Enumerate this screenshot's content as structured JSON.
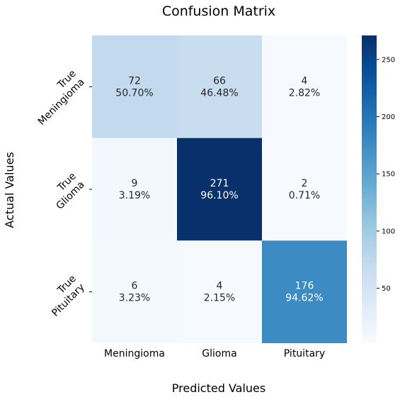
{
  "chart_data": {
    "type": "heatmap",
    "title": "Confusion Matrix",
    "xlabel": "Predicted Values",
    "ylabel": "Actual Values",
    "x_categories": [
      "Meningioma",
      "Glioma",
      "Pituitary"
    ],
    "y_categories": [
      [
        "True",
        "Meningioma"
      ],
      [
        "True",
        "Glioma"
      ],
      [
        "True",
        "Pituitary"
      ]
    ],
    "values": [
      [
        72,
        66,
        4
      ],
      [
        9,
        271,
        2
      ],
      [
        6,
        4,
        176
      ]
    ],
    "cell_labels": [
      [
        [
          "72",
          "50.70%"
        ],
        [
          "66",
          "46.48%"
        ],
        [
          "4",
          "2.82%"
        ]
      ],
      [
        [
          "9",
          "3.19%"
        ],
        [
          "271",
          "96.10%"
        ],
        [
          "2",
          "0.71%"
        ]
      ],
      [
        [
          "6",
          "3.23%"
        ],
        [
          "4",
          "2.15%"
        ],
        [
          "176",
          "94.62%"
        ]
      ]
    ],
    "colormap": "Blues",
    "colorbar": {
      "min": 2,
      "max": 271,
      "ticks": [
        50,
        100,
        150,
        200,
        250
      ]
    },
    "colors": {
      "low": "#f7fbff",
      "high": "#08306b"
    }
  }
}
